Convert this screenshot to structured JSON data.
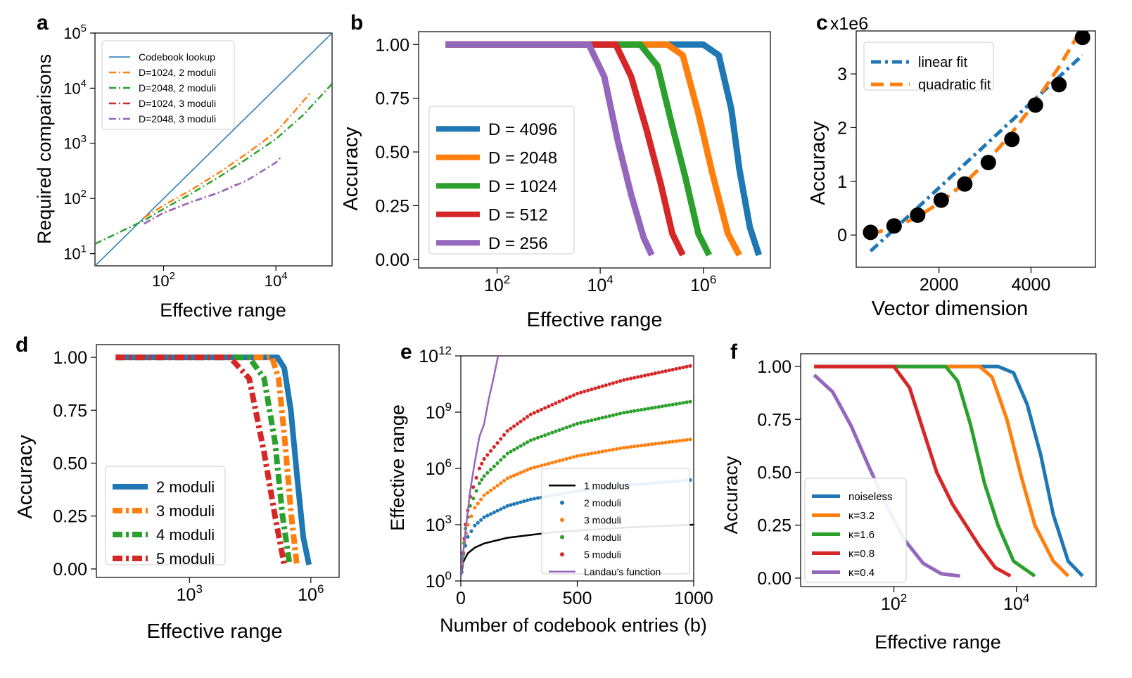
{
  "colors": {
    "blue": "#1f77b4",
    "orange": "#ff7f0e",
    "green": "#2ca02c",
    "red": "#d62728",
    "purple": "#9467bd",
    "black": "#000000"
  },
  "chart_data": [
    {
      "panel": "a",
      "type": "line",
      "scale": "loglog",
      "xlabel": "Effective range",
      "ylabel": "Required comparisons",
      "xlim": [
        6,
        100000
      ],
      "ylim": [
        6,
        100000
      ],
      "xticks": [
        {
          "v": 100,
          "b": "10",
          "e": "2"
        },
        {
          "v": 10000,
          "b": "10",
          "e": "4"
        }
      ],
      "yticks": [
        {
          "v": 10,
          "b": "10",
          "e": "1"
        },
        {
          "v": 100,
          "b": "10",
          "e": "2"
        },
        {
          "v": 1000,
          "b": "10",
          "e": "3"
        },
        {
          "v": 10000,
          "b": "10",
          "e": "4"
        },
        {
          "v": 100000,
          "b": "10",
          "e": "5"
        }
      ],
      "series": [
        {
          "name": "Codebook lookup",
          "color": "blue",
          "dash": "",
          "width": 1.5,
          "x": [
            6,
            100000
          ],
          "y": [
            6,
            100000
          ]
        },
        {
          "name": "D=1024, 2 moduli",
          "color": "orange",
          "dash": "10,4,2,4",
          "width": 2.5,
          "x": [
            45,
            100,
            300,
            1000,
            3000,
            10000,
            20000,
            40000
          ],
          "y": [
            45,
            75,
            140,
            300,
            650,
            1600,
            3500,
            8000
          ]
        },
        {
          "name": "D=2048, 2 moduli",
          "color": "green",
          "dash": "10,4,2,4",
          "width": 2.5,
          "x": [
            6,
            20,
            45,
            100,
            300,
            1000,
            3000,
            10000,
            30000,
            100000
          ],
          "y": [
            15,
            27,
            40,
            65,
            120,
            250,
            520,
            1200,
            3200,
            12000
          ]
        },
        {
          "name": "D=1024, 3 moduli",
          "color": "red",
          "dash": "10,4,2,4",
          "width": 2.5,
          "x": [
            45,
            100,
            300,
            1000,
            2000
          ],
          "y": [
            35,
            55,
            85,
            130,
            180
          ]
        },
        {
          "name": "D=2048, 3 moduli",
          "color": "purple",
          "dash": "10,4,2,4",
          "width": 2.5,
          "x": [
            45,
            100,
            300,
            1000,
            3000,
            10000,
            12000
          ],
          "y": [
            35,
            55,
            85,
            130,
            210,
            450,
            550
          ]
        }
      ]
    },
    {
      "panel": "b",
      "type": "line",
      "scale": "logx",
      "xlabel": "Effective range",
      "ylabel": "Accuracy",
      "xlim": [
        3,
        20000000
      ],
      "ylim": [
        -0.04,
        1.06
      ],
      "xticks": [
        {
          "v": 100,
          "b": "10",
          "e": "2"
        },
        {
          "v": 10000,
          "b": "10",
          "e": "4"
        },
        {
          "v": 1000000,
          "b": "10",
          "e": "6"
        }
      ],
      "yticks": [
        {
          "v": 0,
          "t": "0.00"
        },
        {
          "v": 0.25,
          "t": "0.25"
        },
        {
          "v": 0.5,
          "t": "0.50"
        },
        {
          "v": 0.75,
          "t": "0.75"
        },
        {
          "v": 1,
          "t": "1.00"
        }
      ],
      "series": [
        {
          "name": "D = 4096",
          "color": "blue",
          "width": 9,
          "x": [
            10,
            1000000,
            2000000,
            3500000,
            5000000,
            8000000,
            12000000
          ],
          "y": [
            1,
            1,
            0.95,
            0.7,
            0.42,
            0.15,
            0.02
          ]
        },
        {
          "name": "D = 2048",
          "color": "orange",
          "width": 9,
          "x": [
            10,
            200000,
            400000,
            800000,
            1500000,
            3000000,
            5000000
          ],
          "y": [
            1,
            1,
            0.95,
            0.68,
            0.4,
            0.12,
            0.02
          ]
        },
        {
          "name": "D = 1024",
          "color": "green",
          "width": 9,
          "x": [
            10,
            60000,
            130000,
            250000,
            450000,
            800000,
            1300000
          ],
          "y": [
            1,
            1,
            0.9,
            0.62,
            0.38,
            0.12,
            0.02
          ]
        },
        {
          "name": "D = 512",
          "color": "red",
          "width": 9,
          "x": [
            10,
            20000,
            40000,
            80000,
            150000,
            250000,
            400000
          ],
          "y": [
            1,
            1,
            0.85,
            0.6,
            0.35,
            0.12,
            0.02
          ]
        },
        {
          "name": "D = 256",
          "color": "purple",
          "width": 9,
          "x": [
            10,
            6000,
            12000,
            22000,
            40000,
            70000,
            100000
          ],
          "y": [
            1,
            1,
            0.85,
            0.55,
            0.3,
            0.1,
            0.02
          ]
        }
      ]
    },
    {
      "panel": "c",
      "type": "scatter+line",
      "scale": "linear",
      "offset_label": "x1e6",
      "xlabel": "Vector dimension",
      "ylabel": "Accuracy",
      "xlim": [
        200,
        5400
      ],
      "ylim": [
        -0.6,
        3.8
      ],
      "xticks": [
        {
          "v": 2000,
          "t": "2000"
        },
        {
          "v": 4000,
          "t": "4000"
        }
      ],
      "yticks": [
        {
          "v": 0,
          "t": "0"
        },
        {
          "v": 1,
          "t": "1"
        },
        {
          "v": 2,
          "t": "2"
        },
        {
          "v": 3,
          "t": "3"
        }
      ],
      "points": {
        "x": [
          512,
          1024,
          1536,
          2048,
          2560,
          3072,
          3584,
          4096,
          4608,
          5120
        ],
        "y": [
          0.05,
          0.17,
          0.37,
          0.65,
          0.95,
          1.35,
          1.78,
          2.42,
          2.8,
          3.68
        ]
      },
      "series": [
        {
          "name": "linear fit",
          "color": "blue",
          "dash": "14,6,4,6",
          "width": 5,
          "x": [
            512,
            5120
          ],
          "y": [
            -0.3,
            3.35
          ]
        },
        {
          "name": "quadratic fit",
          "color": "orange",
          "dash": "18,9",
          "width": 5,
          "x": [
            512,
            1024,
            1536,
            2048,
            2560,
            3072,
            3584,
            4096,
            4608,
            5120
          ],
          "y": [
            0.02,
            0.14,
            0.34,
            0.62,
            0.97,
            1.4,
            1.9,
            2.48,
            3.13,
            3.86
          ]
        }
      ]
    },
    {
      "panel": "d",
      "type": "line",
      "scale": "logx",
      "xlabel": "Effective range",
      "ylabel": "Accuracy",
      "xlim": [
        5,
        5000000
      ],
      "ylim": [
        -0.04,
        1.06
      ],
      "xticks": [
        {
          "v": 1000,
          "b": "10",
          "e": "3"
        },
        {
          "v": 1000000,
          "b": "10",
          "e": "6"
        }
      ],
      "yticks": [
        {
          "v": 0,
          "t": "0.00"
        },
        {
          "v": 0.25,
          "t": "0.25"
        },
        {
          "v": 0.5,
          "t": "0.50"
        },
        {
          "v": 0.75,
          "t": "0.75"
        },
        {
          "v": 1,
          "t": "1.00"
        }
      ],
      "series": [
        {
          "name": "2 moduli",
          "color": "blue",
          "dash": "",
          "width": 8,
          "x": [
            15,
            150000,
            220000,
            320000,
            450000,
            650000,
            900000
          ],
          "y": [
            1,
            1,
            0.95,
            0.75,
            0.45,
            0.15,
            0.02
          ]
        },
        {
          "name": "3 moduli",
          "color": "orange",
          "dash": "14,5,4,5",
          "width": 8,
          "x": [
            15,
            110000,
            160000,
            230000,
            330000,
            450000
          ],
          "y": [
            1,
            1,
            0.9,
            0.6,
            0.25,
            0.02
          ]
        },
        {
          "name": "4 moduli",
          "color": "green",
          "dash": "14,5,4,5",
          "width": 8,
          "x": [
            15,
            30000,
            70000,
            130000,
            200000,
            300000
          ],
          "y": [
            1,
            1,
            0.9,
            0.6,
            0.25,
            0.02
          ]
        },
        {
          "name": "5 moduli",
          "color": "red",
          "dash": "14,5,4,5",
          "width": 8,
          "x": [
            15,
            10000,
            30000,
            70000,
            130000,
            220000
          ],
          "y": [
            1,
            1,
            0.9,
            0.55,
            0.25,
            0.02
          ]
        }
      ]
    },
    {
      "panel": "e",
      "type": "line+scatter",
      "scale": "logy",
      "xlabel": "Number of codebook entries (b)",
      "ylabel": "Effective range",
      "xlim": [
        0,
        1000
      ],
      "ylim": [
        1,
        1000000000000
      ],
      "xticks": [
        {
          "v": 0,
          "t": "0"
        },
        {
          "v": 500,
          "t": "500"
        },
        {
          "v": 1000,
          "t": "1000"
        }
      ],
      "yticks": [
        {
          "v": 1,
          "b": "10",
          "e": "0"
        },
        {
          "v": 1000,
          "b": "10",
          "e": "3"
        },
        {
          "v": 1000000,
          "b": "10",
          "e": "6"
        },
        {
          "v": 1000000000,
          "b": "10",
          "e": "9"
        },
        {
          "v": 1000000000000,
          "b": "10",
          "e": "12"
        }
      ],
      "series": [
        {
          "name": "1 modulus",
          "color": "black",
          "style": "line",
          "width": 2.5,
          "x": [
            2,
            10,
            30,
            60,
            100,
            200,
            400,
            700,
            1000
          ],
          "y": [
            2,
            10,
            30,
            60,
            100,
            200,
            400,
            700,
            1000
          ]
        },
        {
          "name": "2 moduli",
          "color": "blue",
          "style": "dots",
          "x": [
            4,
            10,
            30,
            60,
            100,
            200,
            300,
            500,
            700,
            1000
          ],
          "y": [
            3,
            25,
            225,
            900,
            2500,
            10000,
            22500,
            62500,
            122500,
            250000
          ]
        },
        {
          "name": "3 moduli",
          "color": "orange",
          "style": "dots",
          "x": [
            6,
            15,
            30,
            60,
            100,
            200,
            300,
            500,
            700,
            1000
          ],
          "y": [
            8,
            125,
            1000,
            8000,
            37000,
            296000,
            1000000,
            4600000,
            12700000,
            37000000
          ]
        },
        {
          "name": "4 moduli",
          "color": "green",
          "style": "dots",
          "x": [
            8,
            20,
            40,
            80,
            100,
            200,
            300,
            500,
            700,
            1000
          ],
          "y": [
            16,
            625,
            10000,
            160000,
            390000,
            6250000,
            31600000,
            244000000,
            937000000,
            3900000000
          ]
        },
        {
          "name": "5 moduli",
          "color": "red",
          "style": "dots",
          "x": [
            10,
            20,
            40,
            80,
            100,
            200,
            300,
            500,
            700,
            1000
          ],
          "y": [
            32,
            1024,
            32000,
            1000000,
            3200000,
            100000000,
            760000000,
            9800000000,
            52000000000,
            320000000000
          ]
        },
        {
          "name": "Landau's function",
          "color": "purple",
          "style": "line",
          "width": 2.5,
          "x": [
            2,
            10,
            20,
            40,
            60,
            80,
            100,
            120,
            140,
            160
          ],
          "y": [
            2,
            30,
            420,
            60060,
            2300000,
            50000000,
            232792560,
            5000000000,
            60000000000,
            1000000000000
          ]
        }
      ]
    },
    {
      "panel": "f",
      "type": "line",
      "scale": "logx",
      "xlabel": "Effective range",
      "ylabel": "Accuracy",
      "xlim": [
        3,
        200000
      ],
      "ylim": [
        -0.04,
        1.06
      ],
      "xticks": [
        {
          "v": 100,
          "b": "10",
          "e": "2"
        },
        {
          "v": 10000,
          "b": "10",
          "e": "4"
        }
      ],
      "yticks": [
        {
          "v": 0,
          "t": "0.00"
        },
        {
          "v": 0.25,
          "t": "0.25"
        },
        {
          "v": 0.5,
          "t": "0.50"
        },
        {
          "v": 0.75,
          "t": "0.75"
        },
        {
          "v": 1,
          "t": "1.00"
        }
      ],
      "series": [
        {
          "name": "noiseless",
          "color": "blue",
          "width": 5,
          "x": [
            5,
            5000,
            9000,
            15000,
            25000,
            40000,
            70000,
            120000
          ],
          "y": [
            1,
            1,
            0.97,
            0.82,
            0.58,
            0.3,
            0.08,
            0.01
          ]
        },
        {
          "name": "κ=3.2",
          "color": "orange",
          "width": 5,
          "x": [
            5,
            2500,
            4000,
            7000,
            12000,
            20000,
            40000,
            70000
          ],
          "y": [
            1,
            1,
            0.95,
            0.75,
            0.48,
            0.25,
            0.08,
            0.01
          ]
        },
        {
          "name": "κ=1.6",
          "color": "green",
          "width": 5,
          "x": [
            5,
            700,
            1100,
            1800,
            3000,
            5000,
            9000,
            20000
          ],
          "y": [
            1,
            1,
            0.93,
            0.72,
            0.45,
            0.25,
            0.08,
            0.01
          ]
        },
        {
          "name": "κ=0.8",
          "color": "red",
          "width": 5,
          "x": [
            5,
            100,
            180,
            300,
            500,
            900,
            1500,
            2500,
            4500,
            8000
          ],
          "y": [
            1,
            1,
            0.9,
            0.7,
            0.5,
            0.35,
            0.25,
            0.15,
            0.05,
            0.01
          ]
        },
        {
          "name": "κ=0.4",
          "color": "purple",
          "width": 5,
          "x": [
            5,
            10,
            20,
            40,
            80,
            150,
            300,
            600,
            1200
          ],
          "y": [
            0.96,
            0.88,
            0.72,
            0.52,
            0.33,
            0.18,
            0.07,
            0.02,
            0.01
          ]
        }
      ]
    }
  ]
}
